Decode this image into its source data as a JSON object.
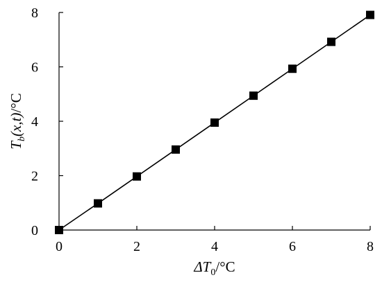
{
  "chart_data": {
    "type": "line",
    "xlabel": {
      "main": "ΔT",
      "sub": "0",
      "unit": "/°C"
    },
    "ylabel": {
      "main": "T",
      "sub": "b",
      "args": "(x,t)",
      "unit": "/°C"
    },
    "xlim": [
      0,
      8
    ],
    "ylim": [
      0,
      8
    ],
    "xticks": [
      0,
      2,
      4,
      6,
      8
    ],
    "yticks": [
      0,
      2,
      4,
      6,
      8
    ],
    "grid": false,
    "marker": "square",
    "line_color": "#000000",
    "x": [
      0,
      1,
      2,
      3,
      4,
      5,
      6,
      7,
      8
    ],
    "series": [
      {
        "values": [
          0,
          0.98,
          1.97,
          2.96,
          3.95,
          4.94,
          5.93,
          6.92,
          7.91
        ]
      }
    ]
  }
}
